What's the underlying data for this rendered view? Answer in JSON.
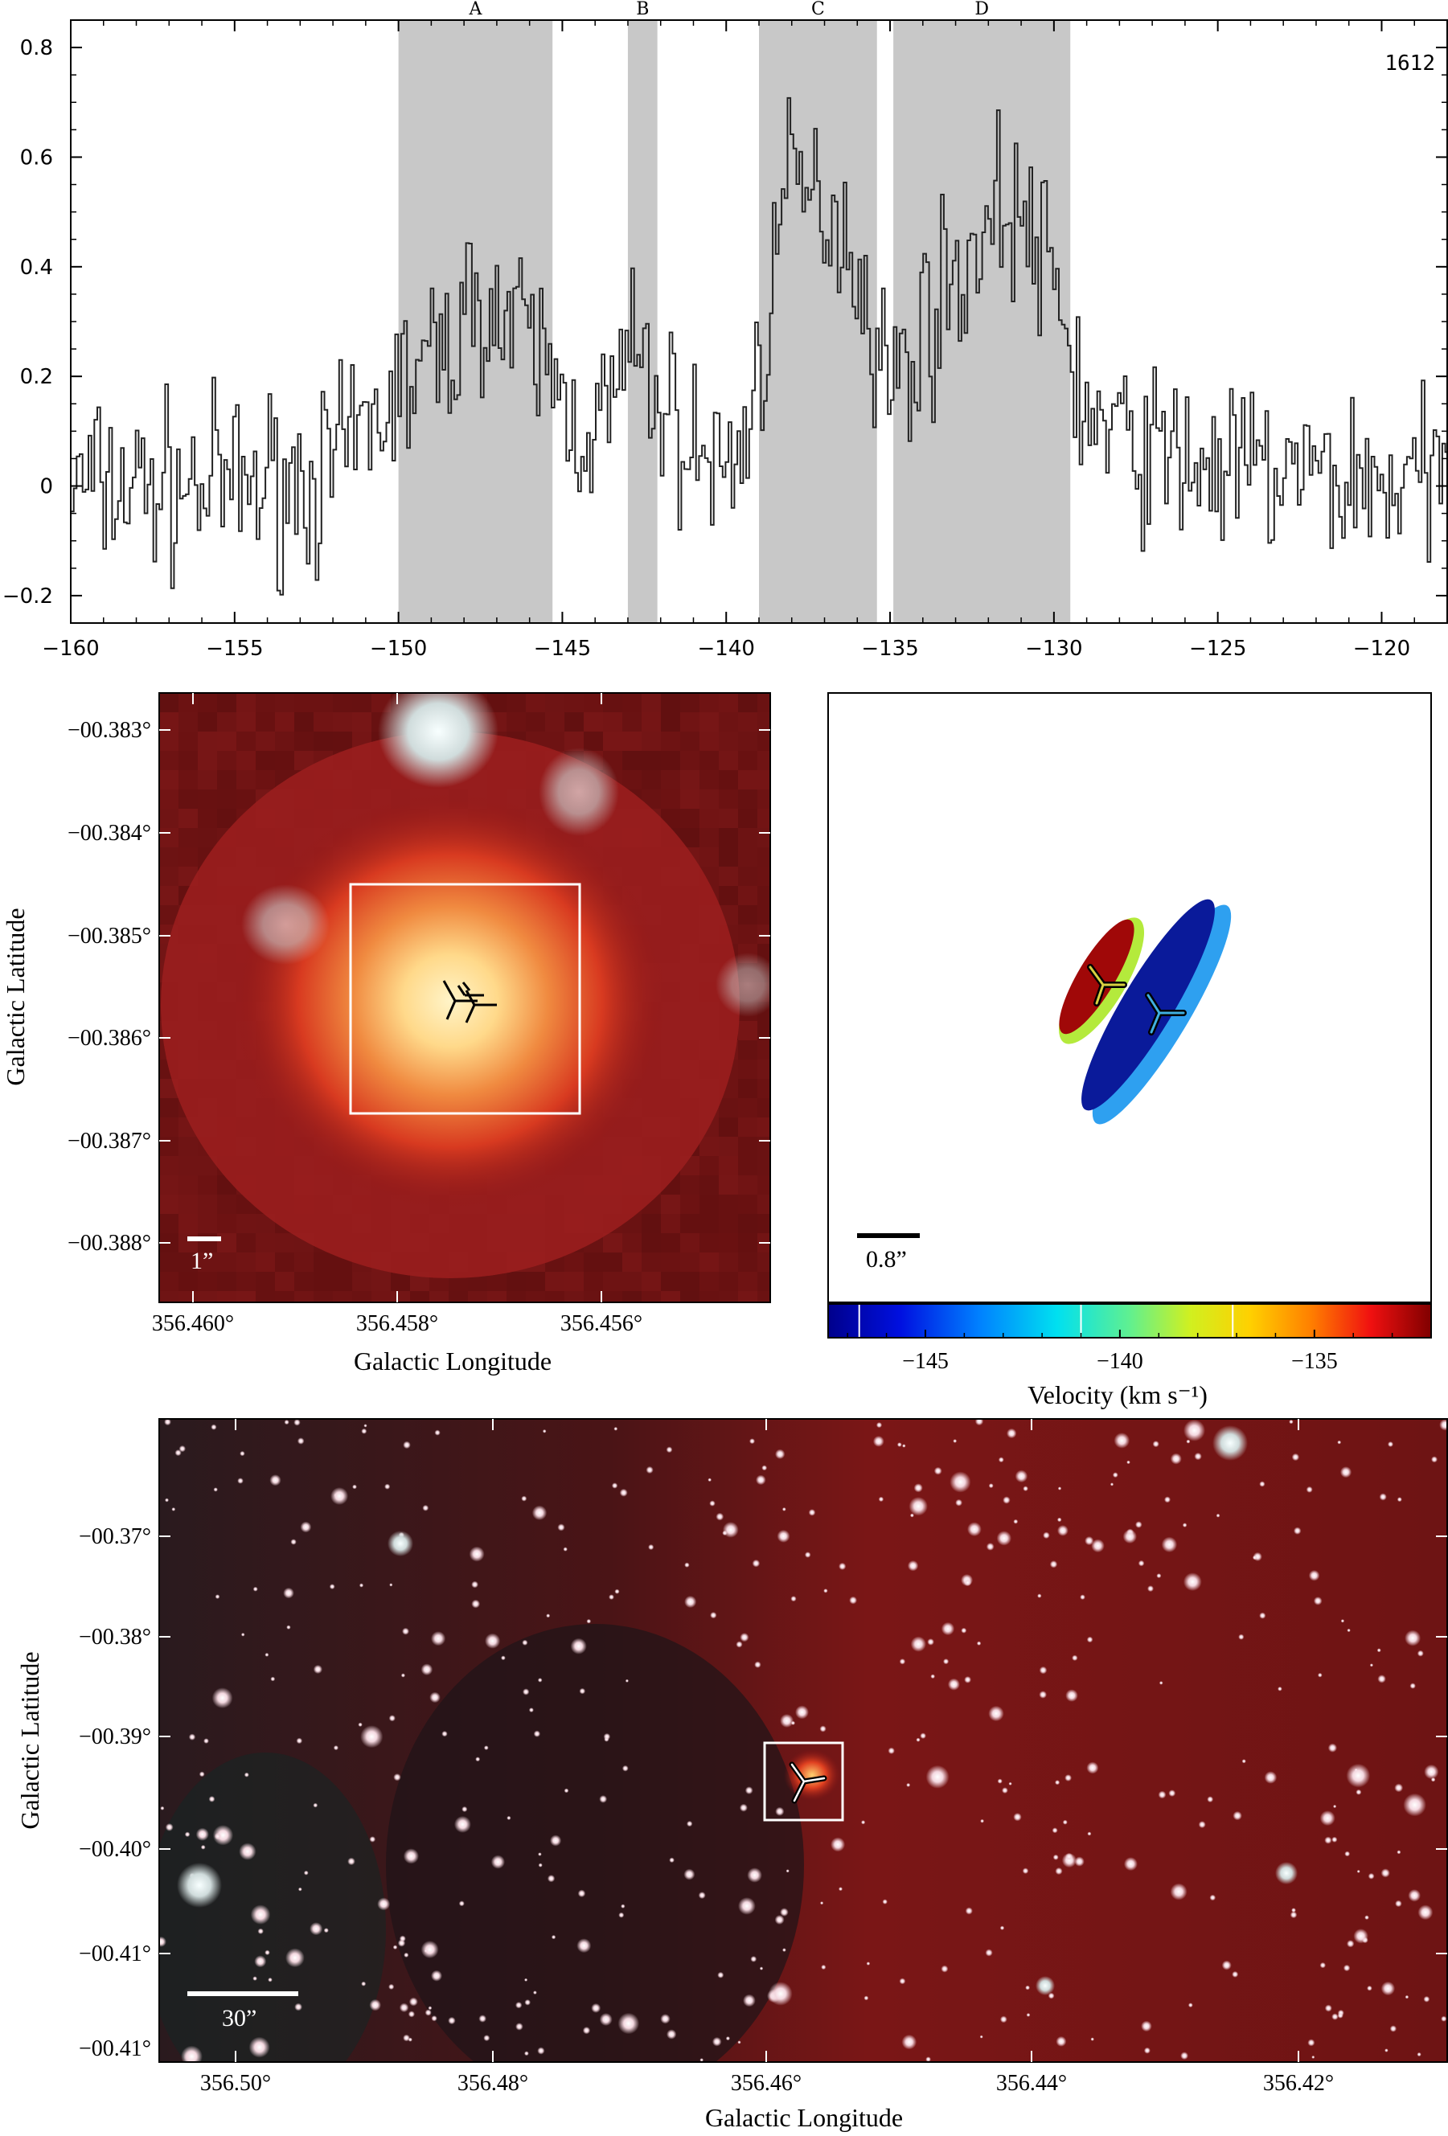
{
  "chart_data": [
    {
      "type": "line",
      "panel": "spectrum",
      "tag": "1612",
      "xlim": [
        -160,
        -118
      ],
      "ylim": [
        -0.25,
        0.85
      ],
      "x_ticks": [
        -160,
        -155,
        -150,
        -145,
        -140,
        -135,
        -130,
        -125,
        -120
      ],
      "y_ticks": [
        -0.2,
        0,
        0.2,
        0.4,
        0.6,
        0.8
      ],
      "x_tick_labels": [
        "−160",
        "−155",
        "−150",
        "−145",
        "−140",
        "−135",
        "−130",
        "−125",
        "−120"
      ],
      "y_tick_labels": [
        "−0.2",
        "0",
        "0.2",
        "0.4",
        "0.6",
        "0.8"
      ],
      "regions": [
        {
          "label": "A",
          "x0": -150.0,
          "x1": -145.3
        },
        {
          "label": "B",
          "x0": -143.0,
          "x1": -142.1
        },
        {
          "label": "C",
          "x0": -139.0,
          "x1": -135.4
        },
        {
          "label": "D",
          "x0": -134.9,
          "x1": -129.5
        }
      ],
      "profile_note": "",
      "anchors": [
        [
          -160,
          0.0
        ],
        [
          -157,
          0.0
        ],
        [
          -155,
          0.0
        ],
        [
          -152,
          0.02
        ],
        [
          -150,
          0.18
        ],
        [
          -149,
          0.22
        ],
        [
          -148,
          0.3
        ],
        [
          -147.5,
          0.36
        ],
        [
          -147,
          0.3
        ],
        [
          -146,
          0.26
        ],
        [
          -145.3,
          0.2
        ],
        [
          -145,
          0.14
        ],
        [
          -144,
          0.1
        ],
        [
          -143.5,
          0.15
        ],
        [
          -143,
          0.24
        ],
        [
          -142.5,
          0.2
        ],
        [
          -142,
          0.15
        ],
        [
          -141,
          0.06
        ],
        [
          -140,
          0.03
        ],
        [
          -139.3,
          0.12
        ],
        [
          -139,
          0.22
        ],
        [
          -138.5,
          0.45
        ],
        [
          -138,
          0.55
        ],
        [
          -137.5,
          0.52
        ],
        [
          -137,
          0.52
        ],
        [
          -136.5,
          0.48
        ],
        [
          -136,
          0.4
        ],
        [
          -135.5,
          0.28
        ],
        [
          -135,
          0.18
        ],
        [
          -134.5,
          0.22
        ],
        [
          -134,
          0.3
        ],
        [
          -133,
          0.38
        ],
        [
          -132,
          0.48
        ],
        [
          -131.5,
          0.52
        ],
        [
          -131,
          0.48
        ],
        [
          -130,
          0.36
        ],
        [
          -129.5,
          0.24
        ],
        [
          -129,
          0.12
        ],
        [
          -128,
          0.08
        ],
        [
          -125,
          0.03
        ],
        [
          -118,
          0.0
        ]
      ]
    },
    {
      "type": "scatter",
      "panel": "ellipses",
      "scale_label": "0.8”",
      "colorbar": {
        "label": "Velocity (km s⁻¹)",
        "range": [
          -147.5,
          -132.0
        ],
        "ticks": [
          -145,
          -140,
          -135
        ],
        "tick_labels": [
          "−145",
          "−140",
          "−135"
        ],
        "marks": [
          -146.7,
          -141.0,
          -137.1
        ]
      },
      "features": [
        {
          "name": "A",
          "velocity": -147.5,
          "color": "#0a1a9a"
        },
        {
          "name": "B",
          "velocity": -142.5,
          "color": "#2ea0f0"
        },
        {
          "name": "C",
          "velocity": -137.1,
          "color": "#b4ea3c"
        },
        {
          "name": "D",
          "velocity": -132.0,
          "color": "#a00808"
        }
      ]
    },
    {
      "type": "scatter",
      "panel": "zoom-image",
      "scale_label": "1”",
      "xlabel": "Galactic Longitude",
      "ylabel": "Galactic Latitude",
      "x_tick_labels": [
        "356.460°",
        "356.458°",
        "356.456°"
      ],
      "y_tick_labels": [
        "−00.383°",
        "−00.384°",
        "−00.385°",
        "−00.386°",
        "−00.387°",
        "−00.388°"
      ]
    },
    {
      "type": "scatter",
      "panel": "wide-image",
      "scale_label": "30”",
      "xlabel": "Galactic Longitude",
      "ylabel": "Galactic Latitude",
      "x_tick_labels": [
        "356.50°",
        "356.48°",
        "356.46°",
        "356.44°",
        "356.42°"
      ],
      "y_tick_labels": [
        "−00.37°",
        "−00.38°",
        "−00.39°",
        "−00.40°",
        "−00.41°"
      ]
    }
  ],
  "colors": {
    "region_fill": "#c8c8c8",
    "image_bg": "#6e1212",
    "axis": "#000000"
  }
}
